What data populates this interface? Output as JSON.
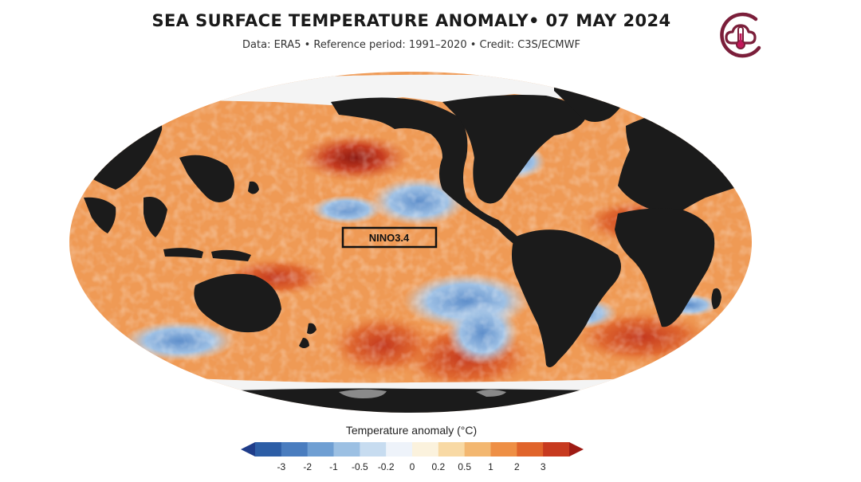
{
  "title": "SEA SURFACE TEMPERATURE ANOMALY• 07 MAY 2024",
  "subtitle": "Data: ERA5 • Reference period: 1991–2020 • Credit: C3S/ECMWF",
  "logo": {
    "icon": "cloud-thermometer-icon",
    "color": "#7b1e3a"
  },
  "map": {
    "projection": "Robinson",
    "box_label": "NINO3.4",
    "land_color": "#1b1b1b",
    "ice_color": "#9a9a9a"
  },
  "legend": {
    "title": "Temperature anomaly (°C)",
    "ticks": [
      "-3",
      "-2",
      "-1",
      "-0.5",
      "-0.2",
      "0",
      "0.2",
      "0.5",
      "1",
      "2",
      "3"
    ],
    "colors": [
      "#1f3d8a",
      "#2d5ea6",
      "#4a7dbf",
      "#6f9fd3",
      "#9cc0e3",
      "#c7dcf0",
      "#eef3fa",
      "#fbf2dd",
      "#f8d9a4",
      "#f3b770",
      "#ee8f45",
      "#e0642b",
      "#c73a1f",
      "#9e1b14"
    ]
  }
}
